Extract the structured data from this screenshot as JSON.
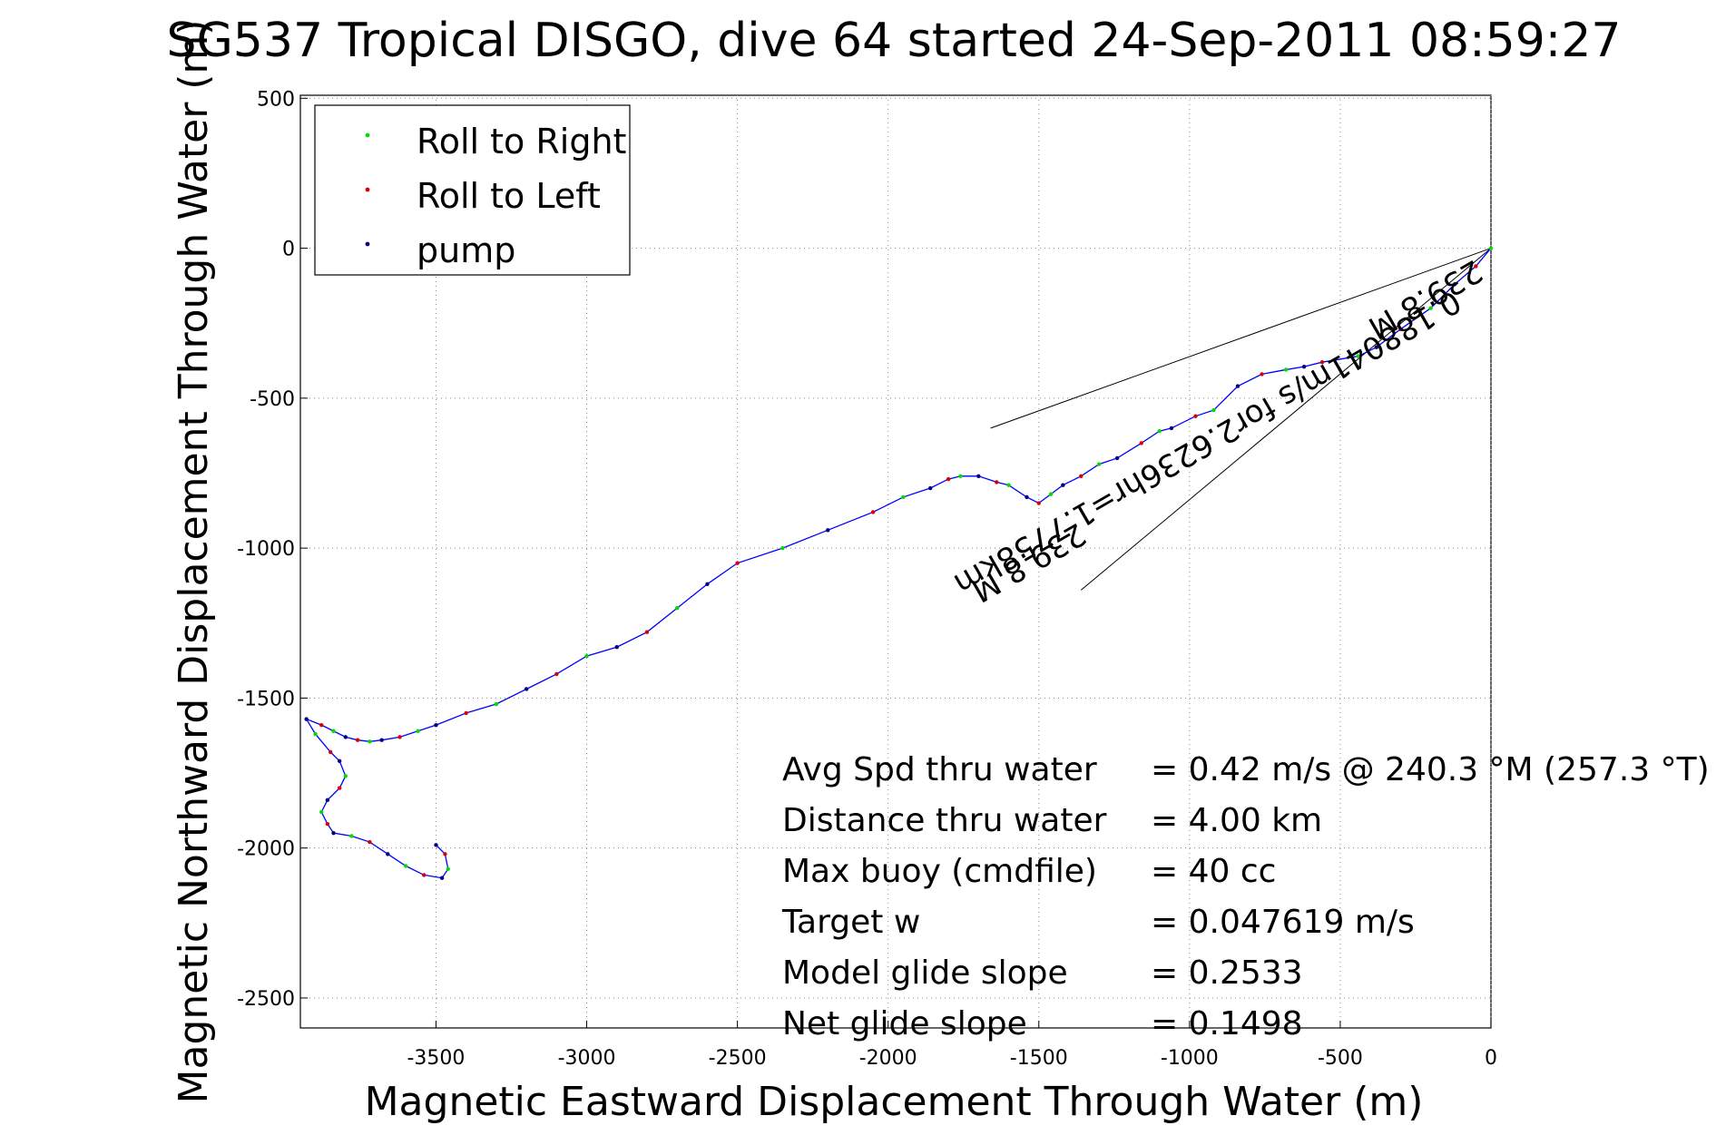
{
  "chart_data": {
    "type": "line",
    "title": "SG537 Tropical DISGO, dive 64 started 24-Sep-2011 08:59:27",
    "xlabel": "Magnetic Eastward Displacement Through Water (m)",
    "ylabel": "Magnetic Northward Displacement Through Water (m)",
    "xlim": [
      -3950,
      0
    ],
    "ylim": [
      -2600,
      510
    ],
    "grid": true,
    "x_ticks": [
      -3500,
      -3000,
      -2500,
      -2000,
      -1500,
      -1000,
      -500,
      0
    ],
    "y_ticks": [
      500,
      0,
      -500,
      -1000,
      -1500,
      -2000,
      -2500
    ],
    "legend_position": "top-left",
    "legend": [
      {
        "label": "Roll to Right",
        "color": "#00dd00"
      },
      {
        "label": "Roll to Left",
        "color": "#dd0000"
      },
      {
        "label": "pump",
        "color": "#000080"
      }
    ],
    "track": {
      "name": "track",
      "color": "#0000ff",
      "x": [
        0,
        -50,
        -120,
        -200,
        -300,
        -380,
        -440,
        -560,
        -620,
        -680,
        -760,
        -840,
        -920,
        -980,
        -1060,
        -1100,
        -1160,
        -1240,
        -1300,
        -1360,
        -1420,
        -1460,
        -1500,
        -1540,
        -1600,
        -1640,
        -1700,
        -1760,
        -1800,
        -1860,
        -1950,
        -2050,
        -2200,
        -2350,
        -2500,
        -2600,
        -2700,
        -2800,
        -2900,
        -3000,
        -3100,
        -3200,
        -3300,
        -3400,
        -3500,
        -3560,
        -3620,
        -3680,
        -3720,
        -3760,
        -3800,
        -3840,
        -3880,
        -3930,
        -3900,
        -3850,
        -3820,
        -3800,
        -3820,
        -3860,
        -3880,
        -3860,
        -3840,
        -3780,
        -3720,
        -3660,
        -3600,
        -3540,
        -3480,
        -3460,
        -3470,
        -3500
      ],
      "y": [
        0,
        -60,
        -120,
        -200,
        -270,
        -330,
        -360,
        -380,
        -395,
        -405,
        -420,
        -460,
        -540,
        -560,
        -600,
        -610,
        -650,
        -700,
        -720,
        -760,
        -790,
        -820,
        -850,
        -830,
        -790,
        -780,
        -760,
        -760,
        -770,
        -800,
        -830,
        -880,
        -940,
        -1000,
        -1050,
        -1120,
        -1200,
        -1280,
        -1330,
        -1360,
        -1420,
        -1470,
        -1520,
        -1550,
        -1590,
        -1610,
        -1630,
        -1640,
        -1645,
        -1640,
        -1630,
        -1610,
        -1590,
        -1570,
        -1620,
        -1680,
        -1710,
        -1760,
        -1800,
        -1840,
        -1880,
        -1920,
        -1950,
        -1960,
        -1980,
        -2020,
        -2060,
        -2090,
        -2100,
        -2070,
        -2020,
        -1990
      ]
    },
    "heading_lines": [
      {
        "x": [
          0,
          -1660
        ],
        "y": [
          0,
          -600
        ]
      },
      {
        "x": [
          0,
          -1360
        ],
        "y": [
          0,
          -1140
        ]
      }
    ],
    "heading_labels": [
      {
        "text": "239.8 M"
      },
      {
        "text": "0.188041m/s for2.6236hr=1.7758km"
      },
      {
        "text": "239.8 M"
      }
    ],
    "stats": [
      {
        "label": "Avg Spd thru water",
        "value": "=  0.42 m/s @ 240.3 °M (257.3 °T)"
      },
      {
        "label": "Distance thru water",
        "value": "=  4.00 km"
      },
      {
        "label": "Max buoy (cmdfile)",
        "value": "= 40 cc"
      },
      {
        "label": "Target w",
        "value": "= 0.047619 m/s"
      },
      {
        "label": "Model glide slope",
        "value": "= 0.2533"
      },
      {
        "label": "Net glide slope",
        "value": "= 0.1498"
      }
    ]
  }
}
